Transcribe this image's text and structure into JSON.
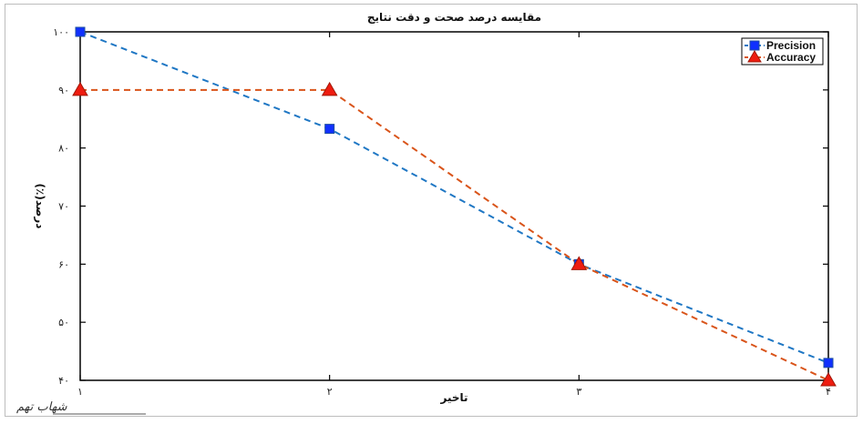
{
  "chart_data": {
    "type": "line",
    "title": "مقایسه درصد صحت و دقت نتایج",
    "xlabel": "تاخیر",
    "ylabel": "درصد(٪)",
    "x": [
      1,
      2,
      3,
      4
    ],
    "x_tick_labels": [
      "۱",
      "۲",
      "۳",
      "۴"
    ],
    "ylim": [
      40,
      100
    ],
    "y_ticks": [
      40,
      50,
      60,
      70,
      80,
      90,
      100
    ],
    "y_tick_labels": [
      "۴۰",
      "۵۰",
      "۶۰",
      "۷۰",
      "۸۰",
      "۹۰",
      "۱۰۰"
    ],
    "grid": false,
    "legend_position": "top-right",
    "series": [
      {
        "name": "Precision",
        "values": [
          100,
          83.3,
          60,
          43
        ],
        "color": "#1f77c4",
        "marker": "square",
        "marker_color": "#1030ff",
        "line_style": "dashed"
      },
      {
        "name": "Accuracy",
        "values": [
          90,
          90,
          60,
          40
        ],
        "color": "#d9541a",
        "marker": "triangle",
        "marker_color": "#ee1c10",
        "line_style": "dashed"
      }
    ]
  },
  "watermark": "شهاب تهم"
}
